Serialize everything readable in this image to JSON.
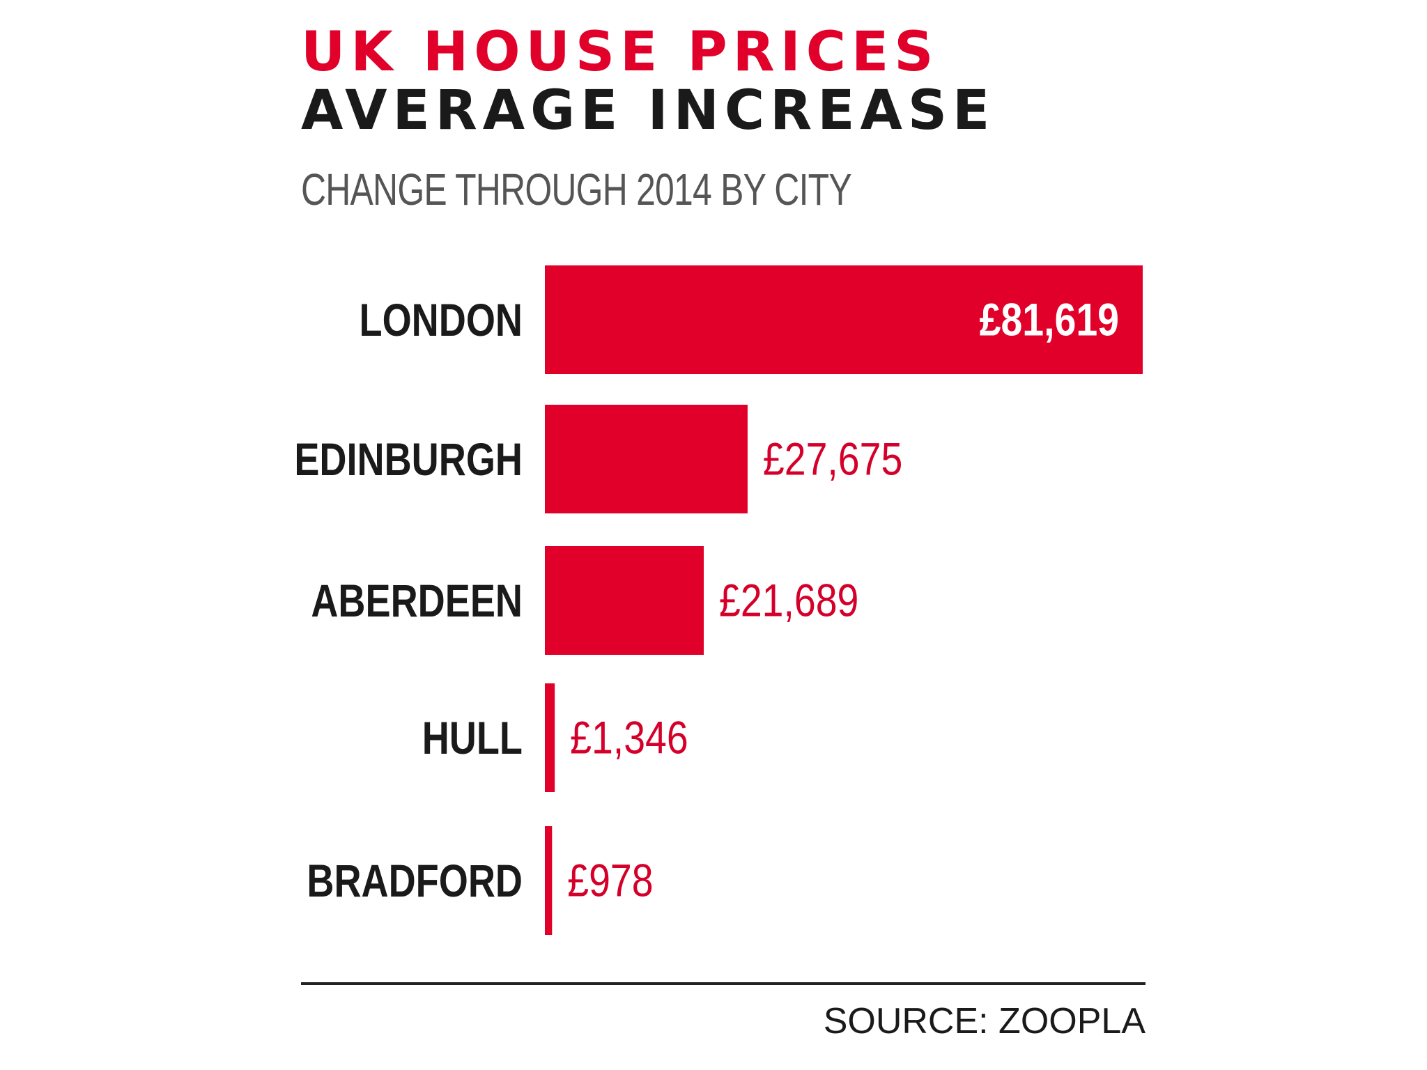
{
  "header": {
    "title_line1": "UK HOUSE PRICES",
    "title_line2": "AVERAGE INCREASE",
    "subtitle": "CHANGE THROUGH 2014 BY CITY"
  },
  "footer": {
    "source": "SOURCE: ZOOPLA"
  },
  "colors": {
    "accent_red": "#e0002a",
    "value_label_red": "#d4002a",
    "text_dark": "#1a1a1a",
    "subtitle_gray": "#555555",
    "rule_dark": "#222222",
    "inside_label": "#ffffff"
  },
  "chart_data": {
    "type": "bar",
    "orientation": "horizontal",
    "title": "UK HOUSE PRICES AVERAGE INCREASE",
    "subtitle": "CHANGE THROUGH 2014 BY CITY",
    "categories": [
      "LONDON",
      "EDINBURGH",
      "ABERDEEN",
      "HULL",
      "BRADFORD"
    ],
    "values": [
      81619,
      27675,
      21689,
      1346,
      978
    ],
    "value_labels": [
      "£81,619",
      "£27,675",
      "£21,689",
      "£1,346",
      "£978"
    ],
    "xlim": [
      0,
      81619
    ],
    "grid": false,
    "legend": "none"
  }
}
